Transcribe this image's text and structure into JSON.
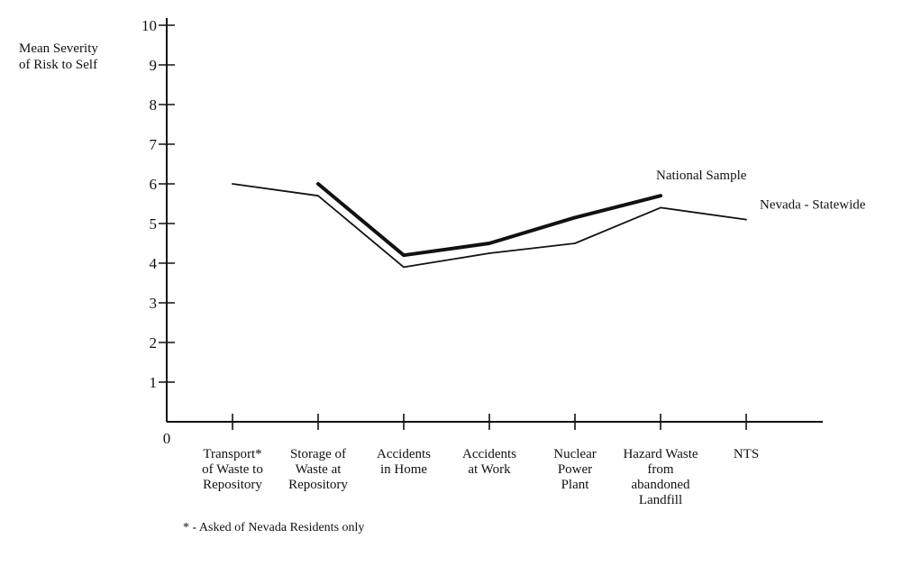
{
  "chart_data": {
    "type": "line",
    "ylabel_lines": [
      "Mean Severity",
      "of Risk to Self"
    ],
    "origin_label": "0",
    "ylim": [
      0,
      10
    ],
    "yticks": [
      1,
      2,
      3,
      4,
      5,
      6,
      7,
      8,
      9,
      10
    ],
    "grid": false,
    "categories": [
      [
        "Transport*",
        "of  Waste to",
        "Repository"
      ],
      [
        "Storage of",
        "Waste at",
        "Repository"
      ],
      [
        "Accidents",
        "in Home"
      ],
      [
        "Accidents",
        "at Work"
      ],
      [
        "Nuclear",
        "Power",
        "Plant"
      ],
      [
        "Hazard Waste",
        "from",
        "abandoned",
        "Landfill"
      ],
      [
        "NTS"
      ]
    ],
    "series": [
      {
        "name": "National Sample",
        "values": [
          null,
          6.0,
          4.2,
          4.5,
          5.15,
          5.7,
          null
        ],
        "style": "thick"
      },
      {
        "name": "Nevada - Statewide",
        "values": [
          6.0,
          5.7,
          3.9,
          4.25,
          4.5,
          5.4,
          5.1
        ],
        "style": "thin"
      }
    ],
    "footnote": "* - Asked of Nevada Residents only"
  },
  "colors": {
    "line": "#111111",
    "background": "#ffffff"
  }
}
